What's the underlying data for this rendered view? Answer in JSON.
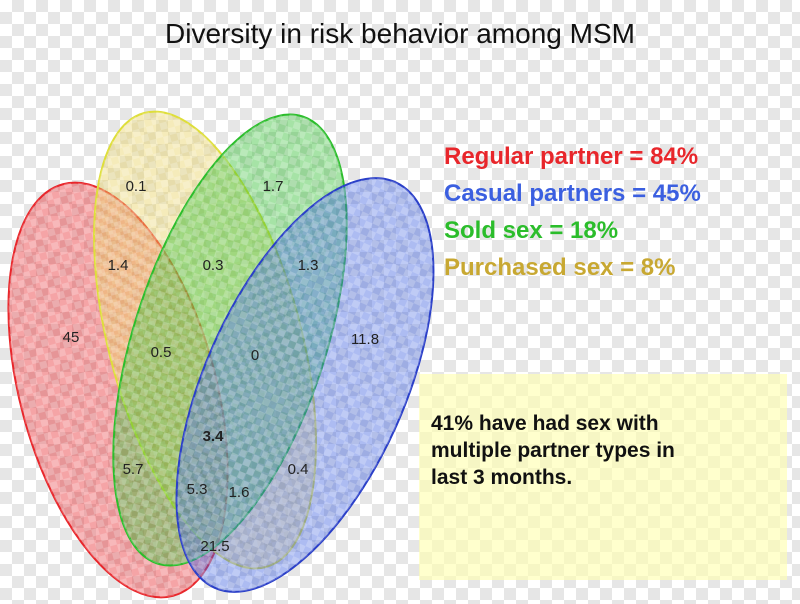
{
  "title": "Diversity in risk behavior among MSM",
  "colors": {
    "regular": "#e8262b",
    "casual": "#3b5fe0",
    "sold": "#2bbd2b",
    "purchased": "#c8a832",
    "note_bg": "#ffffaf"
  },
  "legend": [
    {
      "text": "Regular partner = 84%",
      "color": "#e8262b"
    },
    {
      "text": "Casual partners = 45%",
      "color": "#3b5fe0"
    },
    {
      "text": "Sold sex = 18%",
      "color": "#2bbd2b"
    },
    {
      "text": "Purchased sex = 8%",
      "color": "#c8a832"
    }
  ],
  "venn_values": {
    "purchased_only": "0.1",
    "sold_only": "1.7",
    "regular_purchased": "1.4",
    "purchased_sold": "0.3",
    "sold_casual": "1.3",
    "regular_only": "45",
    "regular_purchased_sold": "0.5",
    "purchased_sold_casual": "0",
    "casual_only": "11.8",
    "all_four": "3.4",
    "regular_sold": "5.7",
    "purchased_casual": "0.4",
    "regular_sold_casual": "5.3",
    "regular_purchased_casual": "1.6",
    "regular_casual": "21.5"
  },
  "note": {
    "lines": [
      "41% have had sex with",
      "multiple partner types in",
      "last 3 months."
    ]
  }
}
